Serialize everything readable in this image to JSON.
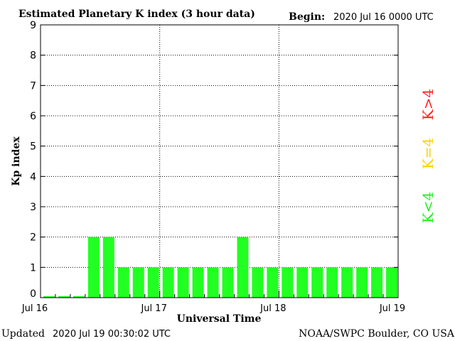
{
  "header": {
    "title": "Estimated Planetary K index (3 hour data)",
    "begin_label": "Begin:",
    "begin_value": "2020 Jul 16 0000 UTC"
  },
  "footer": {
    "updated_label": "Updated",
    "updated_value": "2020 Jul 19 00:30:02 UTC",
    "source": "NOAA/SWPC Boulder, CO USA"
  },
  "legend": {
    "high": "K>4",
    "equal": "K=4",
    "low": "K<4",
    "colors": {
      "high": "#ff2020",
      "equal": "#ffd000",
      "low": "#22ee22"
    }
  },
  "chart_data": {
    "type": "bar",
    "title": "Estimated Planetary K index (3 hour data)",
    "xlabel": "Universal Time",
    "ylabel": "Kp index",
    "ylim": [
      0,
      9
    ],
    "yticks": [
      0,
      1,
      2,
      3,
      4,
      5,
      6,
      7,
      8,
      9
    ],
    "x_tick_labels": [
      "Jul 16",
      "Jul 17",
      "Jul 18",
      "Jul 19"
    ],
    "grid": true,
    "bar_color": "#22ff22",
    "interval_hours": 3,
    "values": [
      0.05,
      0.05,
      0.05,
      2,
      2,
      1,
      1,
      1,
      1,
      1,
      1,
      1,
      1,
      2,
      1,
      1,
      1,
      1,
      1,
      1,
      1,
      1,
      1,
      1
    ]
  }
}
